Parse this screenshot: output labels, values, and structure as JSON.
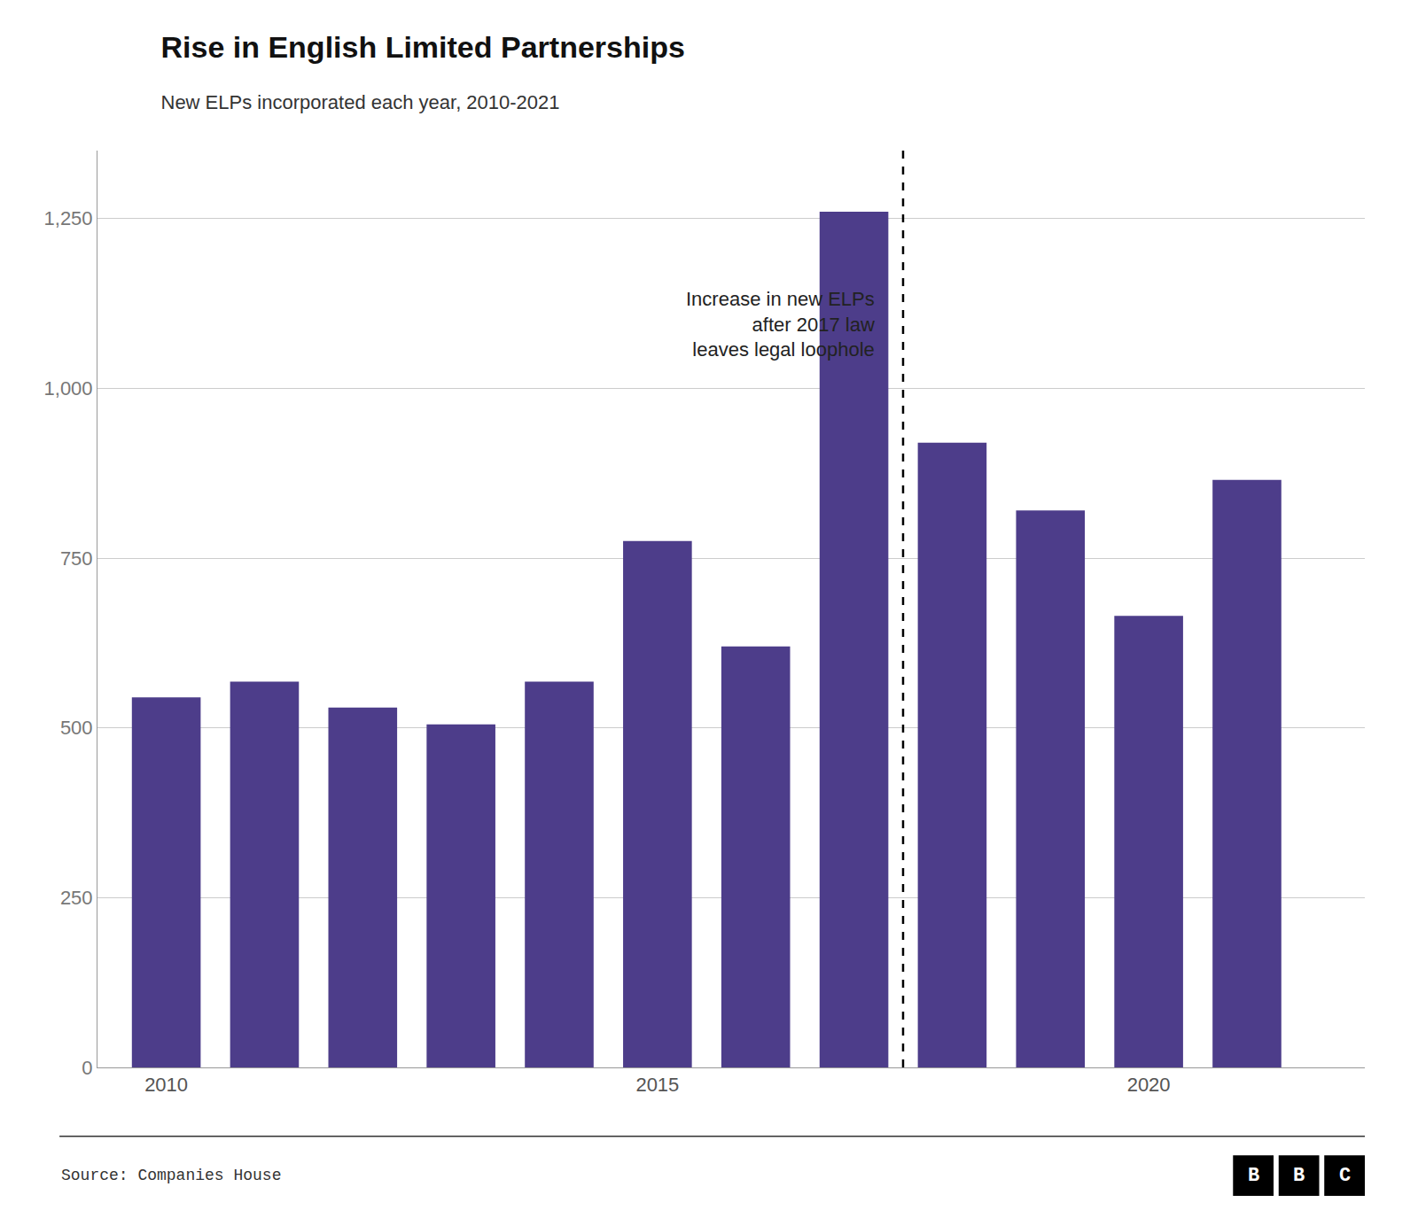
{
  "chart_data": {
    "type": "bar",
    "title": "Rise in English Limited Partnerships",
    "subtitle": "New ELPs incorporated each year, 2010-2021",
    "x": [
      2010,
      2011,
      2012,
      2013,
      2014,
      2015,
      2016,
      2017,
      2018,
      2019,
      2020,
      2021
    ],
    "values": [
      545,
      568,
      530,
      505,
      568,
      775,
      620,
      1260,
      920,
      820,
      665,
      865
    ],
    "color": "#4d3d8a",
    "xlim": [
      2009.3,
      2022.2
    ],
    "xticks": [
      2010,
      2015,
      2020
    ],
    "ylim": [
      0,
      1350
    ],
    "yticks": [
      0,
      250,
      500,
      750,
      {
        "value": 1000,
        "label": "1,000"
      },
      {
        "value": 1250,
        "label": "1,250"
      }
    ],
    "grid": true,
    "vlines": [
      {
        "x": 2017.5,
        "line_style": "dashed"
      }
    ],
    "annotations": [
      {
        "text": "Increase in new ELPs\nafter 2017 law\nleaves legal loophole",
        "x": 2017.5,
        "y": 1150
      }
    ],
    "source": "Source: Companies House",
    "logo": [
      "B",
      "B",
      "C"
    ]
  }
}
